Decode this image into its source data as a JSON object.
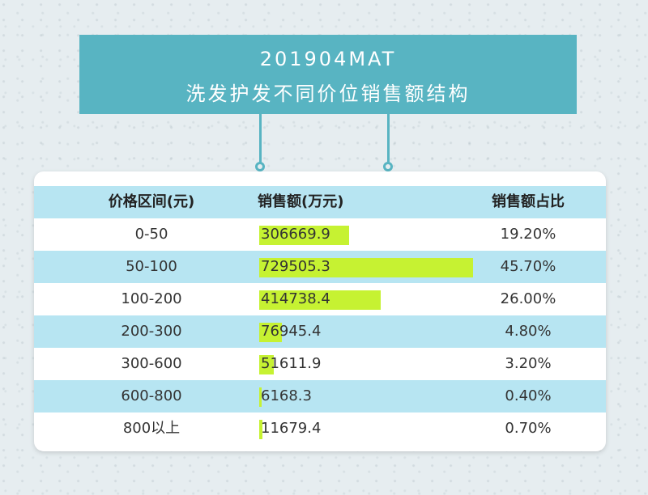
{
  "title": {
    "line1": "201904MAT",
    "line2": "洗发护发不同价位销售额结构"
  },
  "colors": {
    "header_bg": "#58b4c2",
    "row_alt": "#b7e5f2",
    "bar": "#c6f232"
  },
  "chart_data": {
    "type": "table",
    "columns": [
      "价格区间(元)",
      "销售额(万元)",
      "销售额占比"
    ],
    "rows": [
      {
        "range": "0-50",
        "sales": "306669.9",
        "share": "19.20%",
        "share_value": 19.2
      },
      {
        "range": "50-100",
        "sales": "729505.3",
        "share": "45.70%",
        "share_value": 45.7
      },
      {
        "range": "100-200",
        "sales": "414738.4",
        "share": "26.00%",
        "share_value": 26.0
      },
      {
        "range": "200-300",
        "sales": "76945.4",
        "share": "4.80%",
        "share_value": 4.8
      },
      {
        "range": "300-600",
        "sales": "51611.9",
        "share": "3.20%",
        "share_value": 3.2
      },
      {
        "range": "600-800",
        "sales": "6168.3",
        "share": "0.40%",
        "share_value": 0.4
      },
      {
        "range": "800以上",
        "sales": "11679.4",
        "share": "0.70%",
        "share_value": 0.7
      }
    ]
  }
}
